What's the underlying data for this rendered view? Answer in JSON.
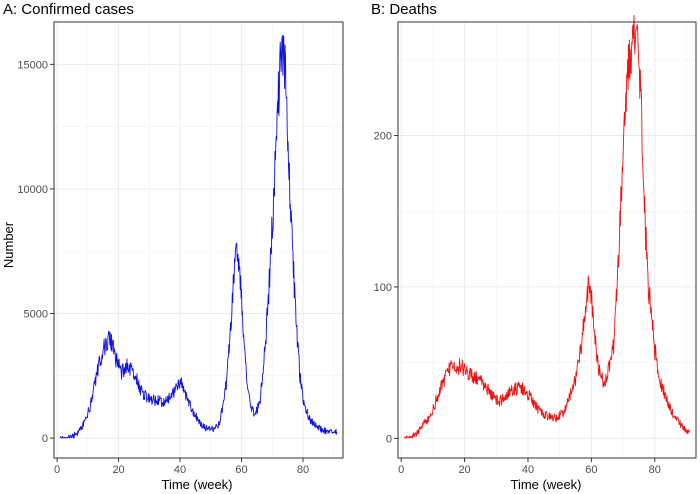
{
  "colors": {
    "panel_a_line": "#1010e0",
    "panel_b_line": "#ee1111",
    "grid": "#ebebeb",
    "border": "#333333"
  },
  "figure": {
    "shared_xlabel": "Time (week)",
    "panel_a": {
      "title": "A: Confirmed cases",
      "ylabel": "Number"
    },
    "panel_b": {
      "title": "B: Deaths"
    }
  },
  "chart_data": [
    {
      "type": "line",
      "title": "A: Confirmed cases",
      "xlabel": "Time (week)",
      "ylabel": "Number",
      "xlim": [
        -1,
        93
      ],
      "ylim": [
        -800,
        16700
      ],
      "x_ticks": [
        0,
        20,
        40,
        60,
        80
      ],
      "y_ticks": [
        0,
        5000,
        10000,
        15000
      ],
      "grid": true,
      "series": [
        {
          "color": "#1010e0",
          "x": [
            1,
            3,
            5,
            7,
            9,
            11,
            12,
            13,
            14,
            15,
            16,
            17,
            18,
            19,
            20,
            21,
            22,
            23,
            24,
            25,
            26,
            27,
            28,
            30,
            32,
            34,
            36,
            38,
            39,
            40,
            41,
            42,
            44,
            46,
            48,
            50,
            52,
            53,
            54,
            55,
            56,
            57,
            58,
            59,
            60,
            61,
            62,
            63,
            64,
            65,
            66,
            67,
            68,
            69,
            70,
            71,
            72,
            73,
            74,
            75,
            76,
            77,
            78,
            79,
            80,
            82,
            84,
            86,
            88,
            90,
            91
          ],
          "values": [
            0,
            0,
            50,
            250,
            650,
            1400,
            2100,
            2600,
            3100,
            3500,
            3800,
            3950,
            3700,
            3200,
            2900,
            2600,
            2800,
            3000,
            2700,
            2600,
            2300,
            2000,
            1800,
            1550,
            1500,
            1480,
            1550,
            1800,
            2000,
            2300,
            2150,
            1700,
            1100,
            700,
            420,
            350,
            480,
            700,
            1300,
            2200,
            3600,
            5400,
            7500,
            7000,
            5500,
            3400,
            1900,
            1200,
            1000,
            1100,
            1500,
            2600,
            4200,
            6200,
            8500,
            11300,
            13800,
            16200,
            15000,
            12000,
            9000,
            6500,
            4200,
            2500,
            1500,
            800,
            500,
            350,
            250,
            250,
            240
          ]
        }
      ]
    },
    {
      "type": "line",
      "title": "B: Deaths",
      "xlabel": "Time (week)",
      "ylabel": "",
      "xlim": [
        -1,
        93
      ],
      "ylim": [
        -13,
        275
      ],
      "x_ticks": [
        0,
        20,
        40,
        60,
        80
      ],
      "y_ticks": [
        0,
        100,
        200
      ],
      "grid": true,
      "series": [
        {
          "color": "#ee1111",
          "x": [
            1,
            3,
            5,
            7,
            9,
            11,
            13,
            15,
            17,
            19,
            21,
            23,
            25,
            27,
            29,
            31,
            33,
            35,
            37,
            39,
            41,
            43,
            45,
            47,
            49,
            51,
            53,
            55,
            56,
            57,
            58,
            59,
            60,
            61,
            62,
            63,
            64,
            65,
            66,
            67,
            68,
            69,
            70,
            71,
            72,
            73,
            74,
            75,
            76,
            77,
            78,
            79,
            80,
            82,
            84,
            86,
            88,
            90,
            91
          ],
          "values": [
            0,
            1,
            3,
            10,
            13,
            25,
            36,
            45,
            48,
            47,
            43,
            40,
            38,
            33,
            27,
            24,
            28,
            32,
            33,
            32,
            26,
            20,
            16,
            14,
            13,
            17,
            27,
            38,
            50,
            65,
            85,
            102,
            95,
            70,
            50,
            40,
            38,
            42,
            50,
            62,
            95,
            140,
            185,
            225,
            245,
            258,
            262,
            245,
            200,
            140,
            100,
            80,
            58,
            35,
            25,
            15,
            10,
            5,
            4
          ]
        }
      ]
    }
  ]
}
